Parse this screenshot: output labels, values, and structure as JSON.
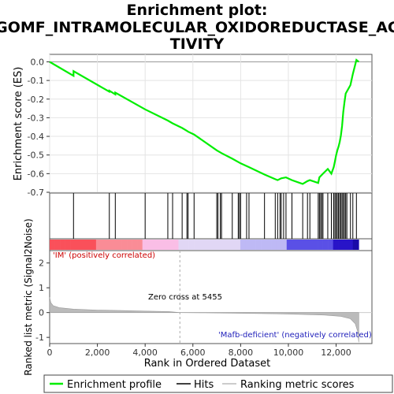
{
  "title_line1": "Enrichment plot:",
  "title_line2": "GOMF_INTRAMOLECULAR_OXIDOREDUCTASE_AC",
  "title_line3": "TIVITY",
  "es_ylabel": "Enrichment score (ES)",
  "metric_ylabel_line1": "Ranked list metric (Signal2Noise)",
  "xlabel": "Rank in Ordered Dataset",
  "pos_label": "'IM' (positively correlated)",
  "neg_label": "'Mafb-deficient' (negatively correlated)",
  "zero_cross_label": "Zero cross at 5455",
  "legend": {
    "profile": "Enrichment profile",
    "hits": "Hits",
    "metric": "Ranking metric scores"
  },
  "colors": {
    "profile": "#00ee00",
    "hits": "#000000",
    "metric": "#bbbbbb"
  },
  "chart_data": {
    "type": "line",
    "x_range": [
      0,
      13500
    ],
    "x_ticks": [
      0,
      2000,
      4000,
      6000,
      8000,
      10000,
      12000
    ],
    "x_tick_labels": [
      "0",
      "2,000",
      "4,000",
      "6,000",
      "8,000",
      "10,000",
      "12,000"
    ],
    "es_ylim": [
      -0.7,
      0.04
    ],
    "es_ticks": [
      0.0,
      -0.1,
      -0.2,
      -0.3,
      -0.4,
      -0.5,
      -0.6,
      -0.7
    ],
    "es_tick_labels": [
      "0.0",
      "-0.1",
      "-0.2",
      "-0.3",
      "-0.4",
      "-0.5",
      "-0.6",
      "-0.7"
    ],
    "metric_ylim": [
      -1.25,
      2.5
    ],
    "metric_ticks": [
      2,
      1,
      0,
      -1
    ],
    "metric_tick_labels": [
      "2",
      "1",
      "0",
      "-1"
    ],
    "zero_cross": 5455,
    "n_genes": 12950,
    "hits": [
      1000,
      2500,
      2750,
      4000,
      4950,
      5150,
      5550,
      5750,
      5800,
      6050,
      7000,
      7050,
      7150,
      7200,
      7650,
      7900,
      7950,
      8000,
      8250,
      8350,
      9000,
      9450,
      9550,
      9650,
      9700,
      9800,
      9900,
      10150,
      10600,
      10800,
      10900,
      11250,
      11300,
      11350,
      11400,
      11450,
      11650,
      11800,
      11900,
      11950,
      12000,
      12050,
      12100,
      12150,
      12200,
      12250,
      12300,
      12350,
      12400,
      12450,
      12600,
      12700,
      12850
    ],
    "enrichment_profile": [
      [
        0,
        0.0
      ],
      [
        1000,
        -0.075
      ],
      [
        1001,
        -0.05
      ],
      [
        2500,
        -0.16
      ],
      [
        2501,
        -0.155
      ],
      [
        2750,
        -0.175
      ],
      [
        2751,
        -0.165
      ],
      [
        4000,
        -0.255
      ],
      [
        4950,
        -0.315
      ],
      [
        5150,
        -0.33
      ],
      [
        5550,
        -0.355
      ],
      [
        5750,
        -0.37
      ],
      [
        5800,
        -0.375
      ],
      [
        6050,
        -0.39
      ],
      [
        7000,
        -0.475
      ],
      [
        7200,
        -0.49
      ],
      [
        7650,
        -0.52
      ],
      [
        8000,
        -0.545
      ],
      [
        8350,
        -0.565
      ],
      [
        9000,
        -0.605
      ],
      [
        9450,
        -0.63
      ],
      [
        9550,
        -0.635
      ],
      [
        9700,
        -0.625
      ],
      [
        9900,
        -0.62
      ],
      [
        10150,
        -0.635
      ],
      [
        10600,
        -0.655
      ],
      [
        10800,
        -0.64
      ],
      [
        10900,
        -0.635
      ],
      [
        11250,
        -0.65
      ],
      [
        11300,
        -0.62
      ],
      [
        11450,
        -0.6
      ],
      [
        11650,
        -0.575
      ],
      [
        11800,
        -0.6
      ],
      [
        11900,
        -0.565
      ],
      [
        11950,
        -0.535
      ],
      [
        12000,
        -0.5
      ],
      [
        12050,
        -0.475
      ],
      [
        12100,
        -0.455
      ],
      [
        12150,
        -0.43
      ],
      [
        12200,
        -0.395
      ],
      [
        12250,
        -0.345
      ],
      [
        12300,
        -0.27
      ],
      [
        12350,
        -0.215
      ],
      [
        12400,
        -0.17
      ],
      [
        12600,
        -0.125
      ],
      [
        12700,
        -0.065
      ],
      [
        12850,
        0.01
      ],
      [
        12950,
        0.0
      ]
    ],
    "metric_curve": [
      [
        0,
        0.62
      ],
      [
        50,
        0.4
      ],
      [
        150,
        0.28
      ],
      [
        400,
        0.2
      ],
      [
        1000,
        0.14
      ],
      [
        2000,
        0.1
      ],
      [
        3000,
        0.08
      ],
      [
        4000,
        0.06
      ],
      [
        5000,
        0.04
      ],
      [
        5455,
        0.0
      ],
      [
        6500,
        -0.01
      ],
      [
        8000,
        -0.03
      ],
      [
        9500,
        -0.05
      ],
      [
        10500,
        -0.07
      ],
      [
        11500,
        -0.1
      ],
      [
        12200,
        -0.15
      ],
      [
        12600,
        -0.25
      ],
      [
        12800,
        -0.45
      ],
      [
        12900,
        -0.75
      ],
      [
        12950,
        -1.2
      ]
    ]
  }
}
